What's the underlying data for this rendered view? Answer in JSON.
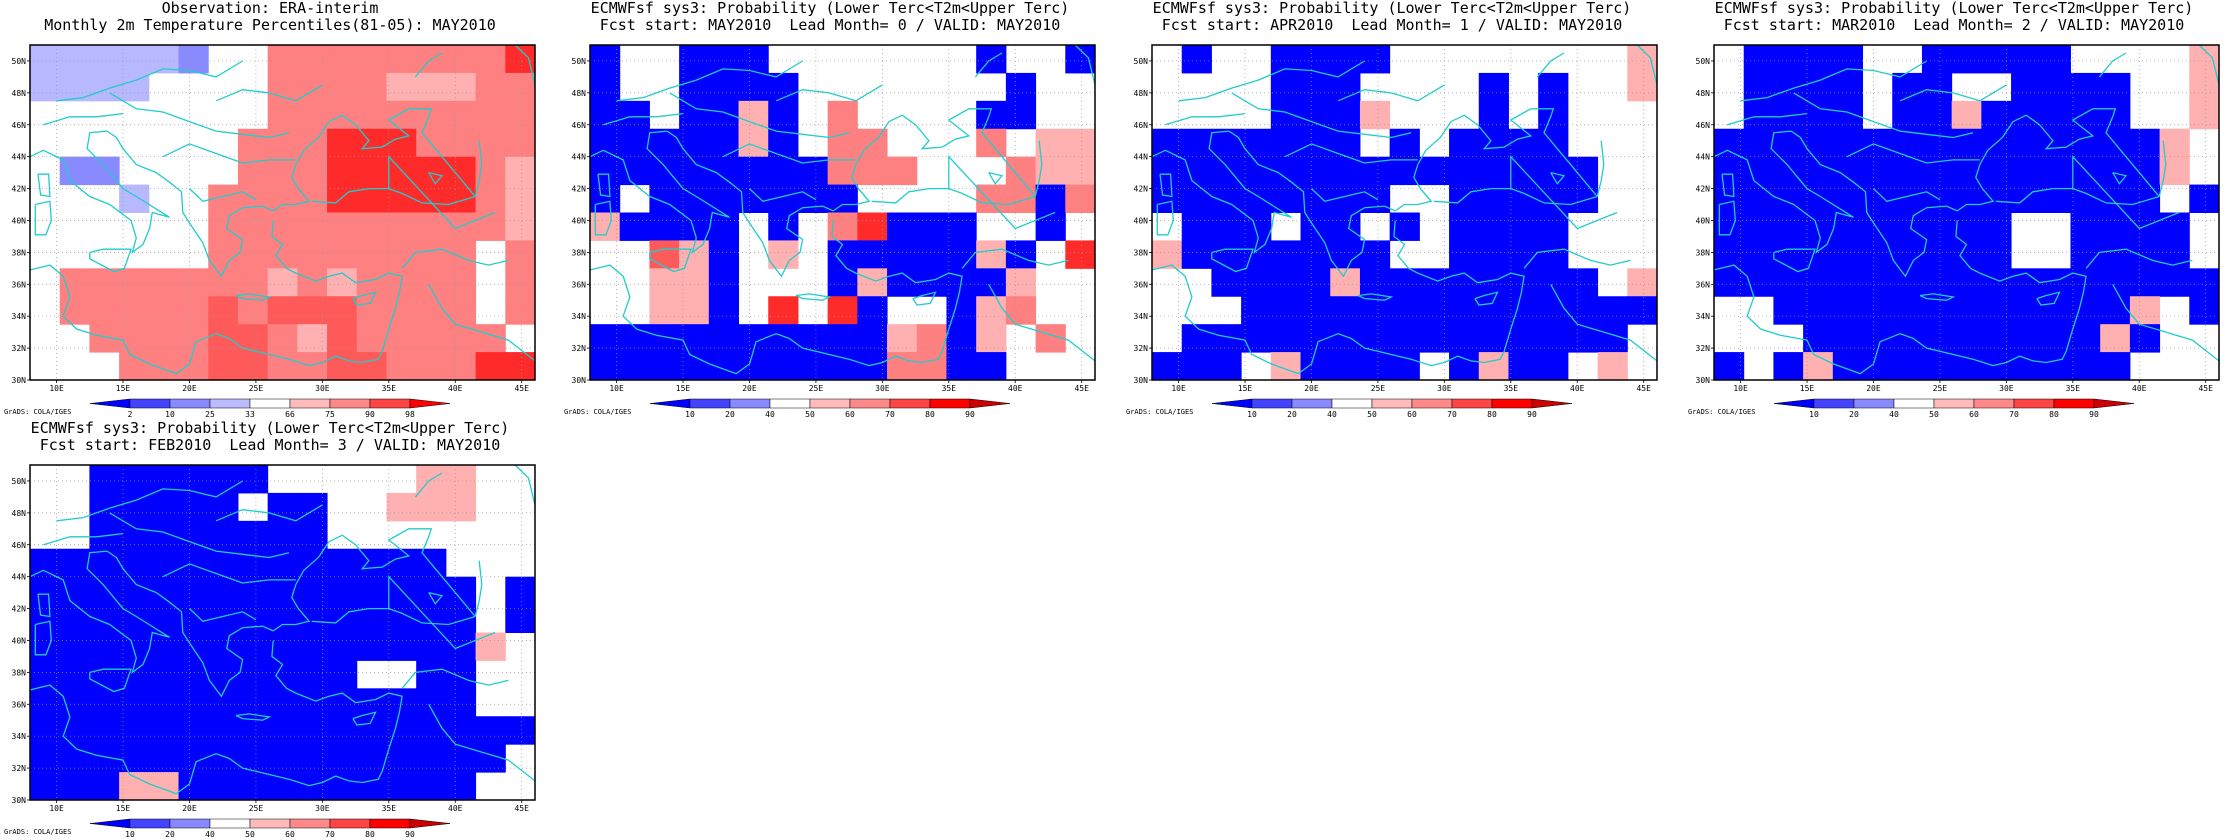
{
  "map": {
    "lon_ticks": [
      "10E",
      "15E",
      "20E",
      "25E",
      "30E",
      "35E",
      "40E",
      "45E"
    ],
    "lat_ticks": [
      "30N",
      "32N",
      "34N",
      "36N",
      "38N",
      "40N",
      "42N",
      "44N",
      "46N",
      "48N",
      "50N"
    ],
    "lon_range": [
      8,
      46
    ],
    "lat_range": [
      30,
      51
    ],
    "grid_lines": "dotted",
    "coastline_color": "#22cccc",
    "grads_label": "GrADS: COLA/IGES"
  },
  "colorbars": {
    "observation": {
      "labels": [
        "2",
        "10",
        "25",
        "33",
        "66",
        "75",
        "90",
        "98"
      ],
      "colors": [
        "#0000ff",
        "#4444ff",
        "#8888ff",
        "#bbbbff",
        "#ffffff",
        "#ffbbbb",
        "#ff8888",
        "#ff4444",
        "#ff0000"
      ]
    },
    "forecast": {
      "labels": [
        "10",
        "20",
        "40",
        "50",
        "60",
        "70",
        "80",
        "90"
      ],
      "colors": [
        "#0000ff",
        "#4444ff",
        "#8888ff",
        "#ffffff",
        "#ffbbbb",
        "#ff8888",
        "#ff4444",
        "#ff0000",
        "#cc0000"
      ]
    }
  },
  "palette": {
    "B": "#0000ff",
    "b": "#3b3bff",
    "p": "#8a8aff",
    "q": "#b8b8ff",
    "W": "#ffffff",
    "l": "#ffb0b0",
    "s": "#ff8080",
    "m": "#ff5a5a",
    "r": "#ff2a2a",
    "R": "#ff0000"
  },
  "panels": [
    {
      "title_line1": "Observation: ERA-interim",
      "title_line2": "Monthly 2m Temperature Percentiles(81-05): MAY2010",
      "colorbar": "observation",
      "grid": [
        "qqqqqpWWssssssssr",
        "qqqqWWWWsssslllss",
        "WWWWWWWWsssssssss",
        "WWWWWWWsssrrrssss",
        "WppWWWWsssrrrrrsl",
        "WWWqWWssssrrrrrsl",
        "WWWWWWssssssssssl",
        "WWWWWWsssssssssWs",
        "WssssssslslssssWs",
        "WsssssmsmmmssssWs",
        "WWssssmmslmsssssW",
        "WWWsssmmssmmsssrr"
      ]
    },
    {
      "title_line1": "ECMWFsf sys3: Probability (Lower Terc<T2m<Upper Terc)",
      "title_line2": "Fcst start: MAY2010  Lead Month= 0 / VALID: MAY2010",
      "colorbar": "forecast",
      "grid": [
        "BWWBBBWWWWWWWBWWB",
        "BWWBBBBWWWWWWWBWW",
        "BBWBBlBWsWWWWBBWW",
        "BBBBBlBWssWWWsWll",
        "BBBBBBBBsssWWWsll",
        "BWBBBBBBBWWWWssBs",
        "lBBBBWBWsrBBBWWBW",
        "WWmlBWlWBBBBBlBWr",
        "WWllBWWWBlBBBBlWW",
        "WWllBWrWrBWWBlsWW",
        "BBBBBBBBBBlsBlWsW",
        "BBBBBBBBBBssBBWWW"
      ]
    },
    {
      "title_line1": "ECMWFsf sys3: Probability (Lower Terc<T2m<Upper Terc)",
      "title_line2": "Fcst start: APR2010  Lead Month= 1 / VALID: MAY2010",
      "colorbar": "forecast",
      "grid": [
        "WBWWBBBBWWWWWWWWl",
        "WWWWBBBWWWWBWBWWl",
        "WWWWBBBlWWWBWBWWW",
        "BBBBBBBWBWBBBBWWW",
        "BBBBBBBBBBBBBBBWW",
        "BBBBBBBBWWBBBBBWW",
        "WBBBWBBWBWBBBBWWW",
        "lBBBBBBBWWBBBBWWW",
        "WWBBBBlBBBBBBBBWl",
        "WWWBBBBBBBBBBBBBB",
        "WBBBBBBBBBBBBBBBW",
        "BBBWlBBBBWBlBBWlW"
      ]
    },
    {
      "title_line1": "ECMWFsf sys3: Probability (Lower Terc<T2m<Upper Terc)",
      "title_line2": "Fcst start: MAR2010  Lead Month= 2 / VALID: MAY2010",
      "colorbar": "forecast",
      "grid": [
        "WBBBBWWBBBBBWWWWl",
        "WBBBBWBBWWBBBBWWl",
        "WBBBBWBBlBBBBBWWl",
        "BBBBBBBBBBBBBBBlW",
        "BBBBBBBBBBBBBBBlW",
        "BBBBBBBBBBBBBBBWB",
        "BBBBBBBBBBWWBBBBW",
        "BBBBBBBBBBWWBBBBW",
        "BBBBBBBBBBBBBBBBB",
        "WWBBBBBBBBBBBBlWB",
        "WWWBBBBBBBBBBlBWW",
        "BWBlBBBBBBBBBBWWW"
      ]
    },
    {
      "title_line1": "ECMWFsf sys3: Probability (Lower Terc<T2m<Upper Terc)",
      "title_line2": "Fcst start: FEB2010  Lead Month= 3 / VALID: MAY2010",
      "colorbar": "forecast",
      "grid": [
        "WWBBBBBBWWWWWllWW",
        "WWBBBBBWBBWWlllWW",
        "WWBBBBBBBBWWWWWWW",
        "BBBBBBBBBBBBBBWWW",
        "BBBBBBBBBBBBBBBWB",
        "BBBBBBBBBBBBBBBWB",
        "BBBBBBBBBBBBBBBlW",
        "BBBBBBBBBBBWWBBWW",
        "BBBBBBBBBBBBBBBWW",
        "BBBBBBBBBBBBBBBBB",
        "BBBBBBBBBBBBBBBBW",
        "BBBllBBBBBBBBBBWW"
      ]
    }
  ]
}
